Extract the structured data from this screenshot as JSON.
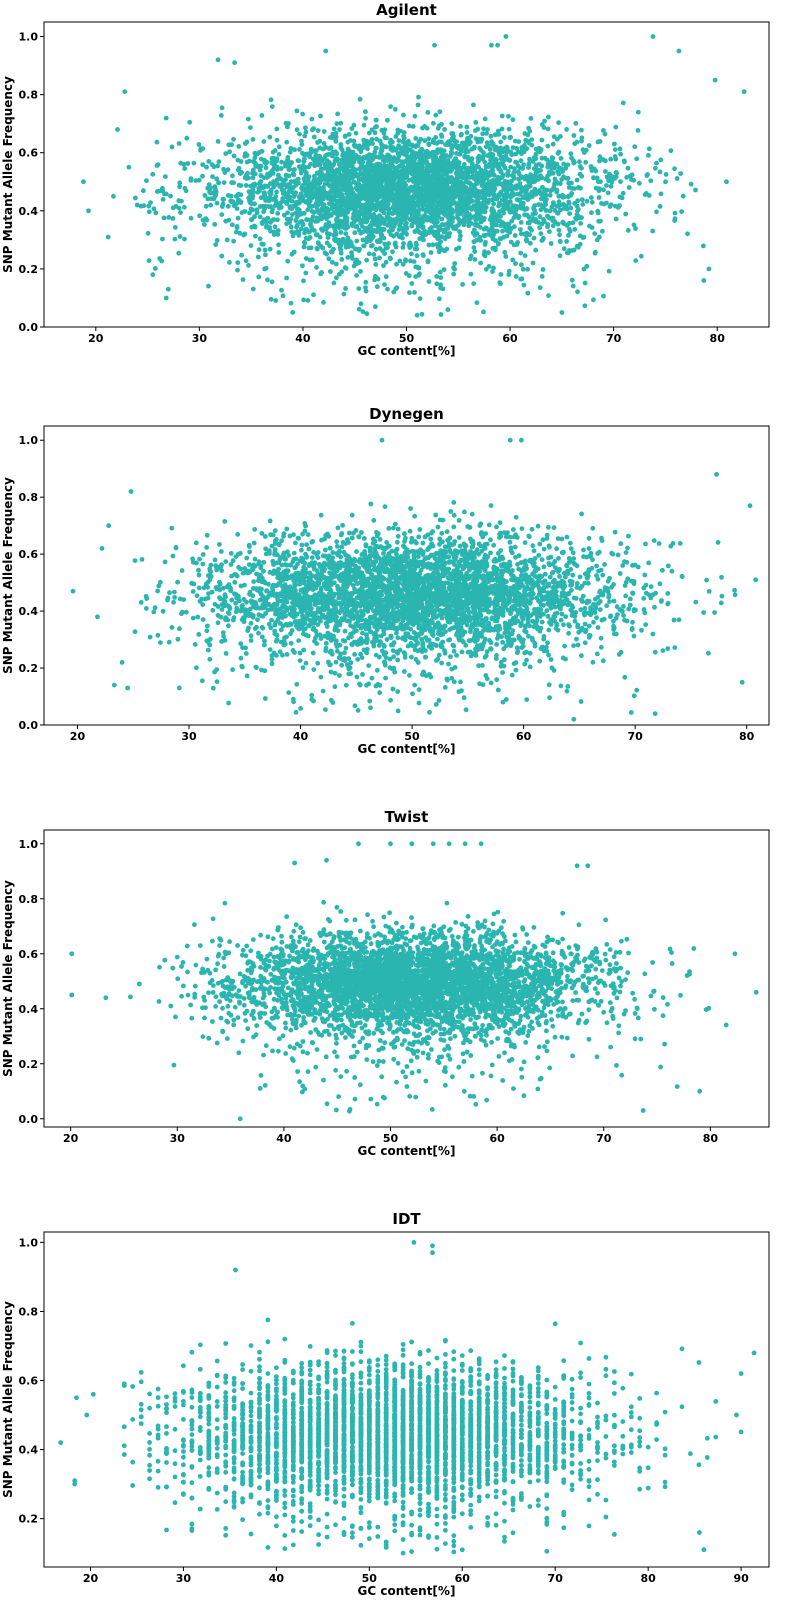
{
  "colors": {
    "marker": "#2ab5b0",
    "axis": "#000000",
    "background": "#ffffff"
  },
  "chart_data": [
    {
      "type": "scatter",
      "title": "Agilent",
      "xlabel": "GC content[%]",
      "ylabel": "SNP Mutant Allele Frequency",
      "xlim": [
        15,
        85
      ],
      "ylim": [
        0,
        1.05
      ],
      "xticks": [
        20,
        30,
        40,
        50,
        60,
        70,
        80
      ],
      "yticks": [
        0.0,
        0.2,
        0.4,
        0.6,
        0.8,
        1.0
      ],
      "ytick_labels": [
        "0.0",
        "0.2",
        "0.4",
        "0.6",
        "0.8",
        "1.0"
      ],
      "cloud": {
        "x_center": 50,
        "x_spread": 22,
        "y_center": 0.48,
        "y_spread": 0.16,
        "density": "high"
      },
      "points": [
        [
          18.8,
          0.5
        ],
        [
          19.3,
          0.4
        ],
        [
          21.2,
          0.31
        ],
        [
          21.7,
          0.45
        ],
        [
          22.1,
          0.68
        ],
        [
          22.8,
          0.81
        ],
        [
          23.2,
          0.55
        ],
        [
          24.0,
          0.42
        ],
        [
          25.5,
          0.18
        ],
        [
          26.8,
          0.1
        ],
        [
          27.0,
          0.13
        ],
        [
          31.8,
          0.92
        ],
        [
          33.4,
          0.91
        ],
        [
          42.2,
          0.95
        ],
        [
          52.7,
          0.97
        ],
        [
          58.2,
          0.97
        ],
        [
          58.8,
          0.97
        ],
        [
          59.6,
          1.0
        ],
        [
          73.8,
          1.0
        ],
        [
          76.3,
          0.95
        ],
        [
          79.8,
          0.85
        ],
        [
          80.9,
          0.5
        ],
        [
          82.6,
          0.81
        ],
        [
          78.7,
          0.16
        ],
        [
          79.2,
          0.2
        ],
        [
          65.0,
          0.05
        ],
        [
          54.0,
          0.06
        ],
        [
          47.0,
          0.07
        ]
      ]
    },
    {
      "type": "scatter",
      "title": "Dynegen",
      "xlabel": "GC content[%]",
      "ylabel": "SNP Mutant Allele Frequency",
      "xlim": [
        17,
        82
      ],
      "ylim": [
        0,
        1.05
      ],
      "xticks": [
        20,
        30,
        40,
        50,
        60,
        70,
        80
      ],
      "yticks": [
        0.0,
        0.2,
        0.4,
        0.6,
        0.8,
        1.0
      ],
      "ytick_labels": [
        "0.0",
        "0.2",
        "0.4",
        "0.6",
        "0.8",
        "1.0"
      ],
      "cloud": {
        "x_center": 50,
        "x_spread": 22,
        "y_center": 0.47,
        "y_spread": 0.16,
        "density": "high"
      },
      "points": [
        [
          19.6,
          0.47
        ],
        [
          21.8,
          0.38
        ],
        [
          22.2,
          0.62
        ],
        [
          22.8,
          0.7
        ],
        [
          23.3,
          0.14
        ],
        [
          24.0,
          0.22
        ],
        [
          24.5,
          0.13
        ],
        [
          24.8,
          0.82
        ],
        [
          47.3,
          1.0
        ],
        [
          58.8,
          1.0
        ],
        [
          59.8,
          1.0
        ],
        [
          71.8,
          0.04
        ],
        [
          80.3,
          0.77
        ],
        [
          80.8,
          0.51
        ],
        [
          79.6,
          0.15
        ],
        [
          64.5,
          0.02
        ],
        [
          77.3,
          0.88
        ]
      ]
    },
    {
      "type": "scatter",
      "title": "Twist",
      "xlabel": "GC content[%]",
      "ylabel": "SNP Mutant Allele Frequency",
      "xlim": [
        17.5,
        85.5
      ],
      "ylim": [
        -0.03,
        1.05
      ],
      "xticks": [
        20,
        30,
        40,
        50,
        60,
        70,
        80
      ],
      "yticks": [
        0.0,
        0.2,
        0.4,
        0.6,
        0.8,
        1.0
      ],
      "ytick_labels": [
        "0.0",
        "0.2",
        "0.4",
        "0.6",
        "0.8",
        "1.0"
      ],
      "cloud": {
        "x_center": 52,
        "x_spread": 20,
        "y_center": 0.5,
        "y_spread": 0.14,
        "density": "high"
      },
      "points": [
        [
          20.1,
          0.6
        ],
        [
          20.1,
          0.45
        ],
        [
          23.3,
          0.44
        ],
        [
          35.9,
          0.0
        ],
        [
          47.0,
          1.0
        ],
        [
          50.0,
          1.0
        ],
        [
          52.0,
          1.0
        ],
        [
          54.0,
          1.0
        ],
        [
          55.5,
          1.0
        ],
        [
          57.0,
          1.0
        ],
        [
          58.5,
          1.0
        ],
        [
          82.3,
          0.6
        ],
        [
          84.3,
          0.46
        ],
        [
          73.7,
          0.03
        ],
        [
          79.0,
          0.1
        ],
        [
          67.5,
          0.92
        ],
        [
          68.5,
          0.92
        ],
        [
          41.0,
          0.93
        ],
        [
          44.0,
          0.94
        ]
      ]
    },
    {
      "type": "scatter",
      "title": "IDT",
      "xlabel": "GC content[%]",
      "ylabel": "SNP Mutant Allele Frequency",
      "xlim": [
        15,
        93
      ],
      "ylim": [
        0.06,
        1.03
      ],
      "xticks": [
        20,
        30,
        40,
        50,
        60,
        70,
        80,
        90
      ],
      "yticks": [
        0.2,
        0.4,
        0.6,
        0.8,
        1.0
      ],
      "ytick_labels": [
        "0.2",
        "0.4",
        "0.6",
        "0.8",
        "1.0"
      ],
      "cloud": {
        "x_center": 52,
        "x_spread": 26,
        "y_center": 0.45,
        "y_spread": 0.15,
        "density": "striped"
      },
      "points": [
        [
          16.8,
          0.42
        ],
        [
          18.3,
          0.31
        ],
        [
          18.3,
          0.3
        ],
        [
          18.5,
          0.55
        ],
        [
          19.6,
          0.5
        ],
        [
          20.3,
          0.56
        ],
        [
          54.8,
          1.0
        ],
        [
          56.8,
          0.99
        ],
        [
          56.8,
          0.97
        ],
        [
          91.4,
          0.68
        ],
        [
          86.0,
          0.11
        ],
        [
          85.5,
          0.16
        ],
        [
          89.5,
          0.5
        ],
        [
          90.0,
          0.62
        ],
        [
          35.6,
          0.92
        ]
      ]
    }
  ]
}
